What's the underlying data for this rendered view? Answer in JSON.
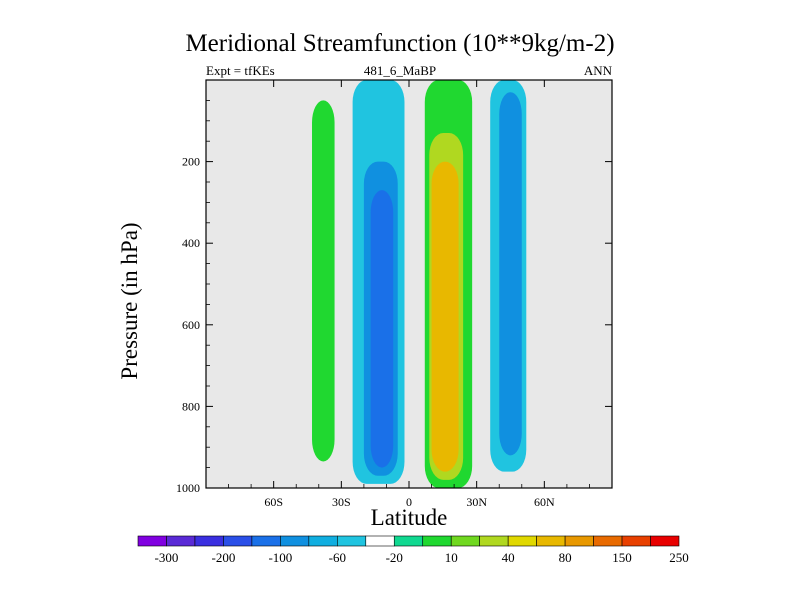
{
  "chart_data": {
    "type": "heatmap",
    "title": "Meridional Streamfunction (10**9kg/m-2)",
    "subtitle_left": "Expt = tfKEs",
    "subtitle_center": "481_6_MaBP",
    "subtitle_right": "ANN",
    "xlabel": "Latitude",
    "ylabel": "Pressure (in hPa)",
    "xlim": [
      -90,
      90
    ],
    "ylim": [
      1000,
      0
    ],
    "y_reversed": true,
    "x_ticks": [
      {
        "value": -60,
        "label": "60S"
      },
      {
        "value": -30,
        "label": "30S"
      },
      {
        "value": 0,
        "label": "0"
      },
      {
        "value": 30,
        "label": "30N"
      },
      {
        "value": 60,
        "label": "60N"
      }
    ],
    "y_ticks": [
      {
        "value": 200,
        "label": "200"
      },
      {
        "value": 400,
        "label": "400"
      },
      {
        "value": 600,
        "label": "600"
      },
      {
        "value": 800,
        "label": "800"
      },
      {
        "value": 1000,
        "label": "1000"
      }
    ],
    "background_color": "#e8e8e8",
    "colorbar": {
      "levels": [
        "-300",
        "-200",
        "-100",
        "-60",
        "-20",
        "10",
        "40",
        "80",
        "150",
        "250"
      ],
      "colors": [
        "#8000e0",
        "#5a2ad6",
        "#3a2fe0",
        "#2a4fe8",
        "#1a70e8",
        "#1090e0",
        "#10aee0",
        "#20c4e0",
        "#ffffff",
        "#10d890",
        "#20d830",
        "#70d820",
        "#b0d820",
        "#e0d800",
        "#e8b800",
        "#e89800",
        "#e86a00",
        "#e84000",
        "#e80000"
      ]
    },
    "cells": [
      {
        "name": "sh-cell-outer",
        "lat_min": -43,
        "lat_max": -33,
        "p_min": 50,
        "p_max": 935,
        "value": 10
      },
      {
        "name": "sh-cell-inner",
        "lat_min": -40,
        "lat_max": -35,
        "p_min": 470,
        "p_max": 860,
        "value": 30
      },
      {
        "name": "hadley-south-outer",
        "lat_min": -25,
        "lat_max": -2,
        "p_min": 0,
        "p_max": 990,
        "value": -10
      },
      {
        "name": "hadley-south-mid",
        "lat_min": -20,
        "lat_max": -5,
        "p_min": 200,
        "p_max": 970,
        "value": -40
      },
      {
        "name": "hadley-south-inner",
        "lat_min": -17,
        "lat_max": -7,
        "p_min": 270,
        "p_max": 950,
        "value": -80
      },
      {
        "name": "hadley-north-outer",
        "lat_min": 7,
        "lat_max": 28,
        "p_min": 0,
        "p_max": 1000,
        "value": 10
      },
      {
        "name": "hadley-north-1",
        "lat_min": 8,
        "lat_max": 26,
        "p_min": 60,
        "p_max": 990,
        "value": 30
      },
      {
        "name": "hadley-north-2",
        "lat_min": 9,
        "lat_max": 24,
        "p_min": 130,
        "p_max": 980,
        "value": 60
      },
      {
        "name": "hadley-north-3",
        "lat_min": 10,
        "lat_max": 22,
        "p_min": 200,
        "p_max": 960,
        "value": 90
      },
      {
        "name": "hadley-north-core",
        "lat_min": 11,
        "lat_max": 21,
        "p_min": 270,
        "p_max": 930,
        "value": 120
      },
      {
        "name": "nh-ferrel-outer",
        "lat_min": 36,
        "lat_max": 52,
        "p_min": 0,
        "p_max": 960,
        "value": -10
      },
      {
        "name": "nh-ferrel-inner",
        "lat_min": 40,
        "lat_max": 50,
        "p_min": 30,
        "p_max": 920,
        "value": -30
      }
    ]
  }
}
